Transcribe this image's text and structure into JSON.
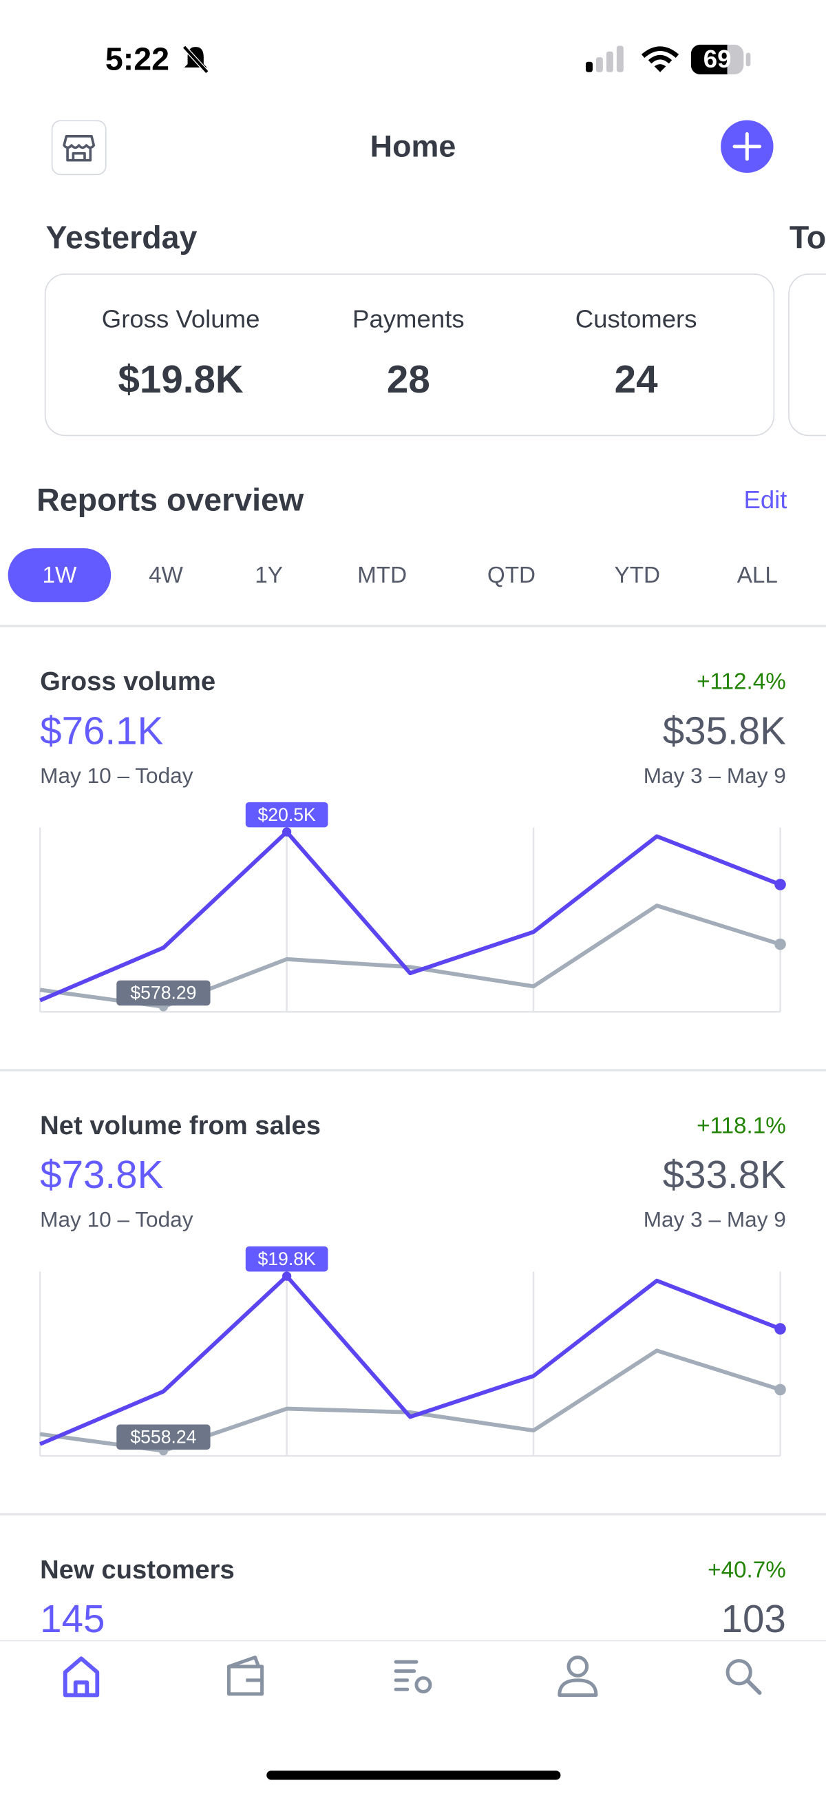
{
  "status_bar": {
    "time": "5:22",
    "battery": "69"
  },
  "header": {
    "title": "Home"
  },
  "summary": {
    "heading": "Yesterday",
    "next_heading": "To",
    "items": [
      {
        "label": "Gross Volume",
        "value": "$19.8K"
      },
      {
        "label": "Payments",
        "value": "28"
      },
      {
        "label": "Customers",
        "value": "24"
      }
    ]
  },
  "reports": {
    "title": "Reports overview",
    "action": "Edit",
    "ranges": [
      "1W",
      "4W",
      "1Y",
      "MTD",
      "QTD",
      "YTD",
      "ALL"
    ],
    "selected_range": 0
  },
  "cards": [
    {
      "title": "Gross volume",
      "change": "+112.4%",
      "current": "$76.1K",
      "previous": "$35.8K",
      "current_period": "May 10 – Today",
      "previous_period": "May 3 – May 9"
    },
    {
      "title": "Net volume from sales",
      "change": "+118.1%",
      "current": "$73.8K",
      "previous": "$33.8K",
      "current_period": "May 10 – Today",
      "previous_period": "May 3 – May 9"
    },
    {
      "title": "New customers",
      "change": "+40.7%",
      "current": "145",
      "previous": "103"
    }
  ],
  "chart_data": [
    {
      "type": "line",
      "ylim": [
        0,
        21000
      ],
      "series": [
        {
          "color": "#a3acb9",
          "values": [
            2500,
            578.29,
            6000,
            5100,
            2900,
            12100,
            7700
          ],
          "value_labels": [
            null,
            "$578.29",
            null,
            null,
            null,
            null,
            null
          ]
        },
        {
          "color": "#5b45f0",
          "values": [
            1300,
            7300,
            20500,
            4400,
            9100,
            20000,
            14500
          ],
          "value_labels": [
            null,
            null,
            "$20.5K",
            null,
            null,
            null,
            null
          ]
        }
      ]
    },
    {
      "type": "line",
      "ylim": [
        0,
        20300
      ],
      "series": [
        {
          "color": "#a3acb9",
          "values": [
            2400,
            558.24,
            5200,
            4800,
            2800,
            11600,
            7300
          ],
          "value_labels": [
            null,
            "$558.24",
            null,
            null,
            null,
            null,
            null
          ]
        },
        {
          "color": "#5b45f0",
          "values": [
            1300,
            7100,
            19800,
            4300,
            8800,
            19300,
            14000
          ],
          "value_labels": [
            null,
            null,
            "$19.8K",
            null,
            null,
            null,
            null
          ]
        }
      ]
    }
  ]
}
